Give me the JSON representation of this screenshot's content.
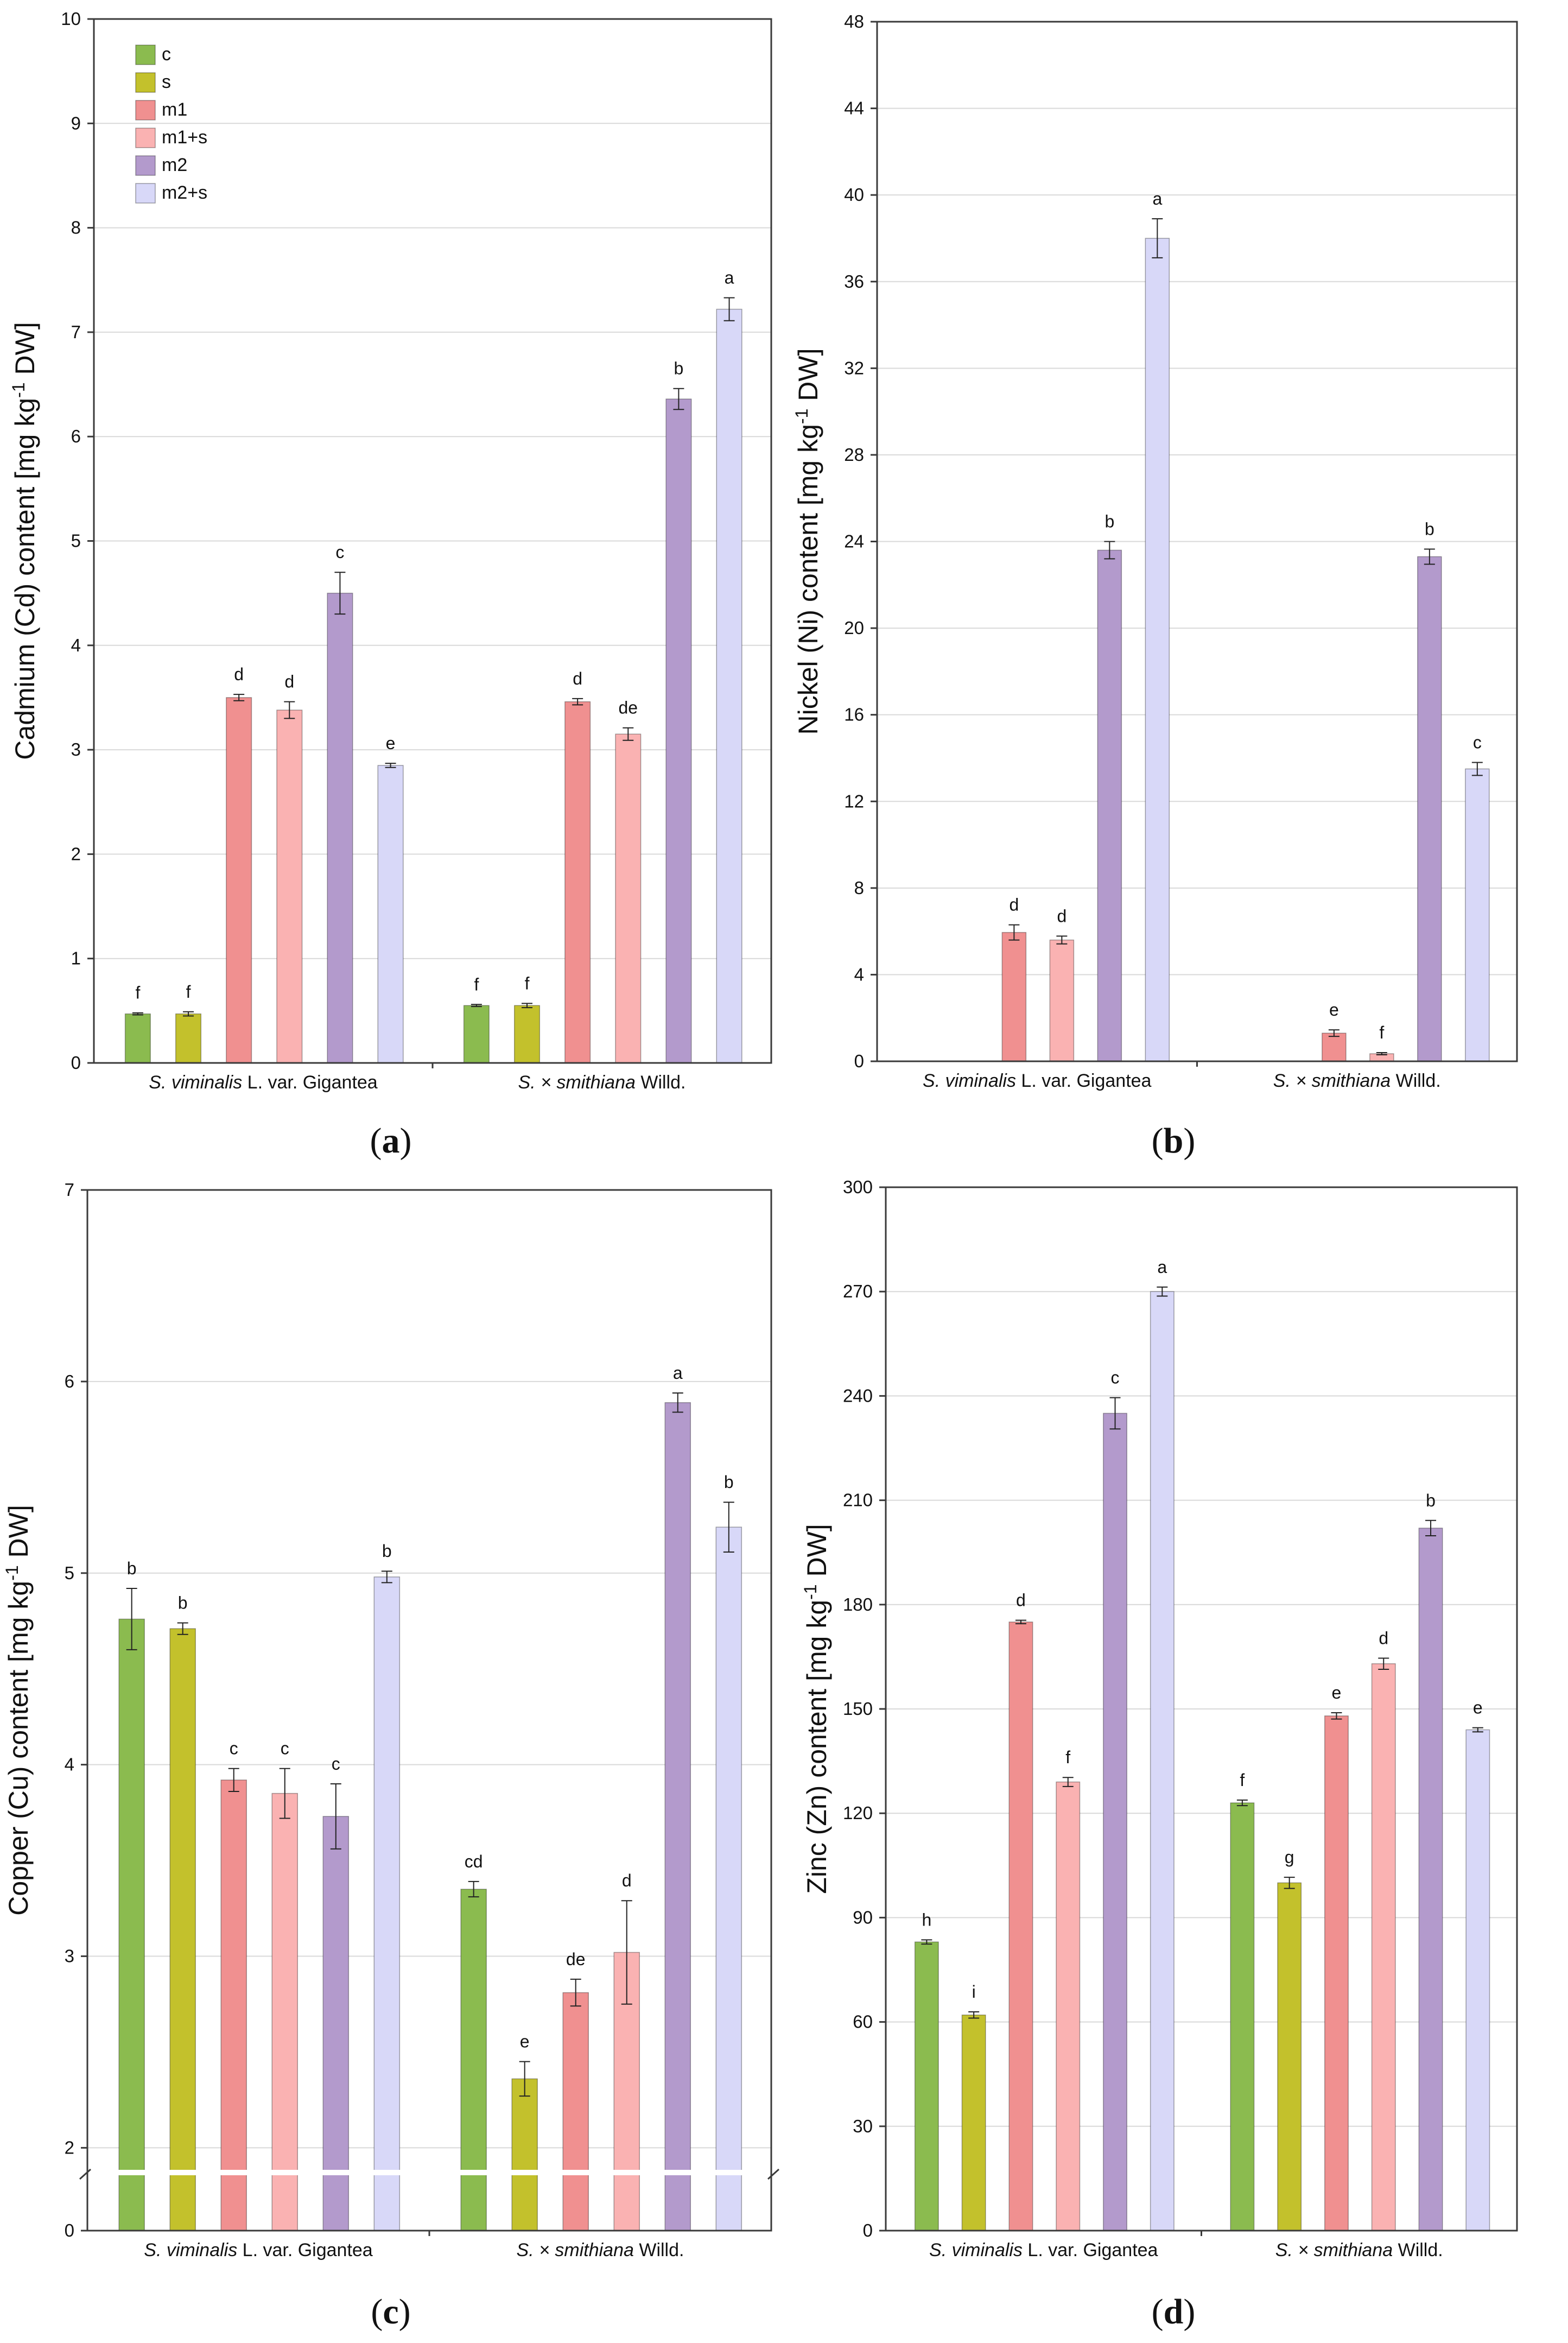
{
  "legend": {
    "c": "c",
    "s": "s",
    "m1": "m1",
    "m1s": "m1+s",
    "m2": "m2",
    "m2s": "m2+s"
  },
  "colors": {
    "c": "#8bbb4f",
    "s": "#c3c12c",
    "m1": "#f09090",
    "m1s": "#fab2b2",
    "m2": "#b39acc",
    "m2s": "#d8d8f8"
  },
  "series_keys": [
    "c",
    "s",
    "m1",
    "m1s",
    "m2",
    "m2s"
  ],
  "species": {
    "sv_italic": "S. viminalis",
    "sv_rest": " L. var. Gigantea",
    "ss_italic": "S. × smithiana",
    "ss_rest": " Willd."
  },
  "chart_data": [
    {
      "type": "bar",
      "panel": "a",
      "caption": "(a)",
      "caption_open": "(",
      "caption_letter": "a",
      "caption_close": ")",
      "ylabel_pre": "Cadmium (Cd) content [mg kg",
      "ylabel_sup": "-1",
      "ylabel_post": " DW]",
      "ylim": [
        0,
        10
      ],
      "yticks": [
        "0",
        "1",
        "2",
        "3",
        "4",
        "5",
        "6",
        "7",
        "8",
        "9",
        "10"
      ],
      "legend": true,
      "categories": [
        "S. viminalis L. var. Gigantea",
        "S. × smithiana Willd."
      ],
      "series": [
        {
          "name": "c",
          "values": [
            0.47,
            0.55
          ],
          "errors": [
            0.01,
            0.01
          ],
          "letters": [
            "f",
            "f"
          ]
        },
        {
          "name": "s",
          "values": [
            0.47,
            0.55
          ],
          "errors": [
            0.02,
            0.02
          ],
          "letters": [
            "f",
            "f"
          ]
        },
        {
          "name": "m1",
          "values": [
            3.5,
            3.46
          ],
          "errors": [
            0.03,
            0.03
          ],
          "letters": [
            "d",
            "d"
          ]
        },
        {
          "name": "m1+s",
          "values": [
            3.38,
            3.15
          ],
          "errors": [
            0.08,
            0.06
          ],
          "letters": [
            "d",
            "de"
          ]
        },
        {
          "name": "m2",
          "values": [
            4.5,
            6.36
          ],
          "errors": [
            0.2,
            0.1
          ],
          "letters": [
            "c",
            "b"
          ]
        },
        {
          "name": "m2+s",
          "values": [
            2.85,
            7.22
          ],
          "errors": [
            0.02,
            0.11
          ],
          "letters": [
            "e",
            "a"
          ]
        }
      ]
    },
    {
      "type": "bar",
      "panel": "b",
      "caption": "(b)",
      "caption_open": "(",
      "caption_letter": "b",
      "caption_close": ")",
      "ylabel_pre": "Nickel (Ni) content [mg kg",
      "ylabel_sup": "-1",
      "ylabel_post": " DW]",
      "ylim": [
        0,
        48
      ],
      "yticks": [
        "0",
        "4",
        "8",
        "12",
        "16",
        "20",
        "24",
        "28",
        "32",
        "36",
        "40",
        "44",
        "48"
      ],
      "legend": false,
      "categories": [
        "S. viminalis L. var. Gigantea",
        "S. × smithiana Willd."
      ],
      "series": [
        {
          "name": "c",
          "values": [
            0,
            0
          ],
          "errors": [
            0,
            0
          ],
          "letters": [
            "",
            ""
          ]
        },
        {
          "name": "s",
          "values": [
            0,
            0
          ],
          "errors": [
            0,
            0
          ],
          "letters": [
            "",
            ""
          ]
        },
        {
          "name": "m1",
          "values": [
            5.95,
            1.3
          ],
          "errors": [
            0.35,
            0.15
          ],
          "letters": [
            "d",
            "e"
          ]
        },
        {
          "name": "m1+s",
          "values": [
            5.6,
            0.35
          ],
          "errors": [
            0.18,
            0.05
          ],
          "letters": [
            "d",
            "f"
          ]
        },
        {
          "name": "m2",
          "values": [
            23.6,
            23.3
          ],
          "errors": [
            0.4,
            0.35
          ],
          "letters": [
            "b",
            "b"
          ]
        },
        {
          "name": "m2+s",
          "values": [
            38.0,
            13.5
          ],
          "errors": [
            0.9,
            0.3
          ],
          "letters": [
            "a",
            "c"
          ]
        }
      ]
    },
    {
      "type": "bar",
      "panel": "c",
      "caption": "(c)",
      "caption_open": "(",
      "caption_letter": "c",
      "caption_close": ")",
      "ylabel_pre": "Copper (Cu) content [mg kg",
      "ylabel_sup": "-1",
      "ylabel_post": " DW]",
      "ylim": [
        0,
        7
      ],
      "axis_break": true,
      "yticks": [
        "0",
        "2",
        "3",
        "4",
        "5",
        "6",
        "7"
      ],
      "legend": false,
      "categories": [
        "S. viminalis L. var. Gigantea",
        "S. × smithiana Willd."
      ],
      "series": [
        {
          "name": "c",
          "values": [
            4.76,
            3.35
          ],
          "errors": [
            0.16,
            0.04
          ],
          "letters": [
            "b",
            "cd"
          ]
        },
        {
          "name": "s",
          "values": [
            4.71,
            2.36
          ],
          "errors": [
            0.03,
            0.09
          ],
          "letters": [
            "b",
            "e"
          ]
        },
        {
          "name": "m1",
          "values": [
            3.92,
            2.81
          ],
          "errors": [
            0.06,
            0.07
          ],
          "letters": [
            "c",
            "de"
          ]
        },
        {
          "name": "m1+s",
          "values": [
            3.85,
            3.02
          ],
          "errors": [
            0.13,
            0.27
          ],
          "letters": [
            "c",
            "d"
          ]
        },
        {
          "name": "m2",
          "values": [
            3.73,
            5.89
          ],
          "errors": [
            0.17,
            0.05
          ],
          "letters": [
            "c",
            "a"
          ]
        },
        {
          "name": "m2+s",
          "values": [
            4.98,
            5.24
          ],
          "errors": [
            0.03,
            0.13
          ],
          "letters": [
            "b",
            "b"
          ]
        }
      ]
    },
    {
      "type": "bar",
      "panel": "d",
      "caption": "(d)",
      "caption_open": "(",
      "caption_letter": "d",
      "caption_close": ")",
      "ylabel_pre": "Zinc (Zn) content [mg kg",
      "ylabel_sup": "-1",
      "ylabel_post": " DW]",
      "ylim": [
        0,
        300
      ],
      "yticks": [
        "0",
        "30",
        "60",
        "90",
        "120",
        "150",
        "180",
        "210",
        "240",
        "270",
        "300"
      ],
      "legend": false,
      "categories": [
        "S. viminalis L. var. Gigantea",
        "S. × smithiana Willd."
      ],
      "series": [
        {
          "name": "c",
          "values": [
            83,
            123
          ],
          "errors": [
            0.6,
            0.8
          ],
          "letters": [
            "h",
            "f"
          ]
        },
        {
          "name": "s",
          "values": [
            62,
            100
          ],
          "errors": [
            0.9,
            1.6
          ],
          "letters": [
            "i",
            "g"
          ]
        },
        {
          "name": "m1",
          "values": [
            175,
            148
          ],
          "errors": [
            0.5,
            0.9
          ],
          "letters": [
            "d",
            "e"
          ]
        },
        {
          "name": "m1+s",
          "values": [
            129,
            163
          ],
          "errors": [
            1.3,
            1.6
          ],
          "letters": [
            "f",
            "d"
          ]
        },
        {
          "name": "m2",
          "values": [
            235,
            202
          ],
          "errors": [
            4.5,
            2.2
          ],
          "letters": [
            "c",
            "b"
          ]
        },
        {
          "name": "m2+s",
          "values": [
            270,
            144
          ],
          "errors": [
            1.3,
            0.6
          ],
          "letters": [
            "a",
            "e"
          ]
        }
      ]
    }
  ]
}
